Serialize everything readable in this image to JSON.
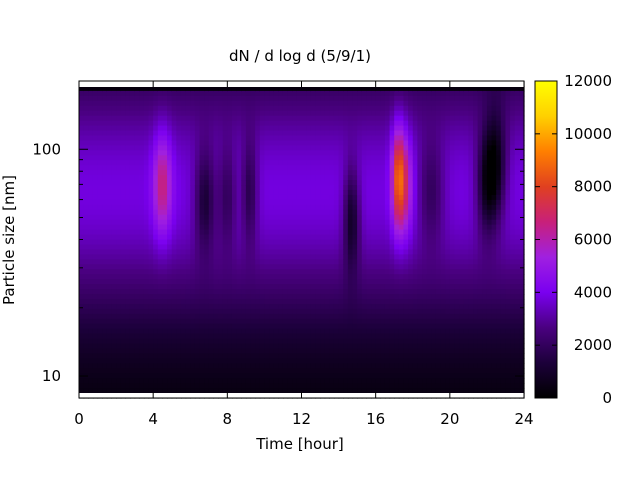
{
  "chart_data": {
    "type": "heatmap",
    "title": "dN / d log d (5/9/1)",
    "xlabel": "Time [hour]",
    "ylabel": "Particle size [nm]",
    "xlim": [
      0,
      24
    ],
    "ylim": [
      8,
      200
    ],
    "yscale": "log",
    "x_ticks": [
      "0",
      "4",
      "8",
      "12",
      "16",
      "20",
      "24"
    ],
    "y_ticks": [
      "10",
      "100"
    ],
    "colorbar": {
      "range": [
        0,
        12000
      ],
      "ticks": [
        "0",
        "2000",
        "4000",
        "6000",
        "8000",
        "10000",
        "12000"
      ],
      "palette": [
        "#000000",
        "#1c003a",
        "#4a0080",
        "#7a00f0",
        "#a020e0",
        "#c8207a",
        "#e04020",
        "#ff7f00",
        "#ffd000",
        "#ffff00"
      ]
    },
    "baseline": {
      "peak_size_nm": 65,
      "peak_value": 3800
    },
    "events": [
      {
        "time_hour": 4.5,
        "peak_size_nm": 70,
        "peak_value": 7000,
        "width_hour": 0.35
      },
      {
        "time_hour": 6.8,
        "peak_size_nm": 60,
        "peak_value": 1000,
        "width_hour": 0.4
      },
      {
        "time_hour": 8.0,
        "peak_size_nm": 62,
        "peak_value": 1800,
        "width_hour": 0.35
      },
      {
        "time_hour": 9.2,
        "peak_size_nm": 65,
        "peak_value": 1500,
        "width_hour": 0.3
      },
      {
        "time_hour": 14.7,
        "peak_size_nm": 50,
        "peak_value": 800,
        "width_hour": 0.3
      },
      {
        "time_hour": 17.2,
        "peak_size_nm": 75,
        "peak_value": 8500,
        "width_hour": 0.25
      },
      {
        "time_hour": 17.6,
        "peak_size_nm": 70,
        "peak_value": 6500,
        "width_hour": 0.3
      },
      {
        "time_hour": 19.0,
        "peak_size_nm": 65,
        "peak_value": 1800,
        "width_hour": 0.5
      },
      {
        "time_hour": 22.0,
        "peak_size_nm": 70,
        "peak_value": 600,
        "width_hour": 0.4
      },
      {
        "time_hour": 22.5,
        "peak_size_nm": 85,
        "peak_value": 800,
        "width_hour": 0.4
      }
    ]
  }
}
